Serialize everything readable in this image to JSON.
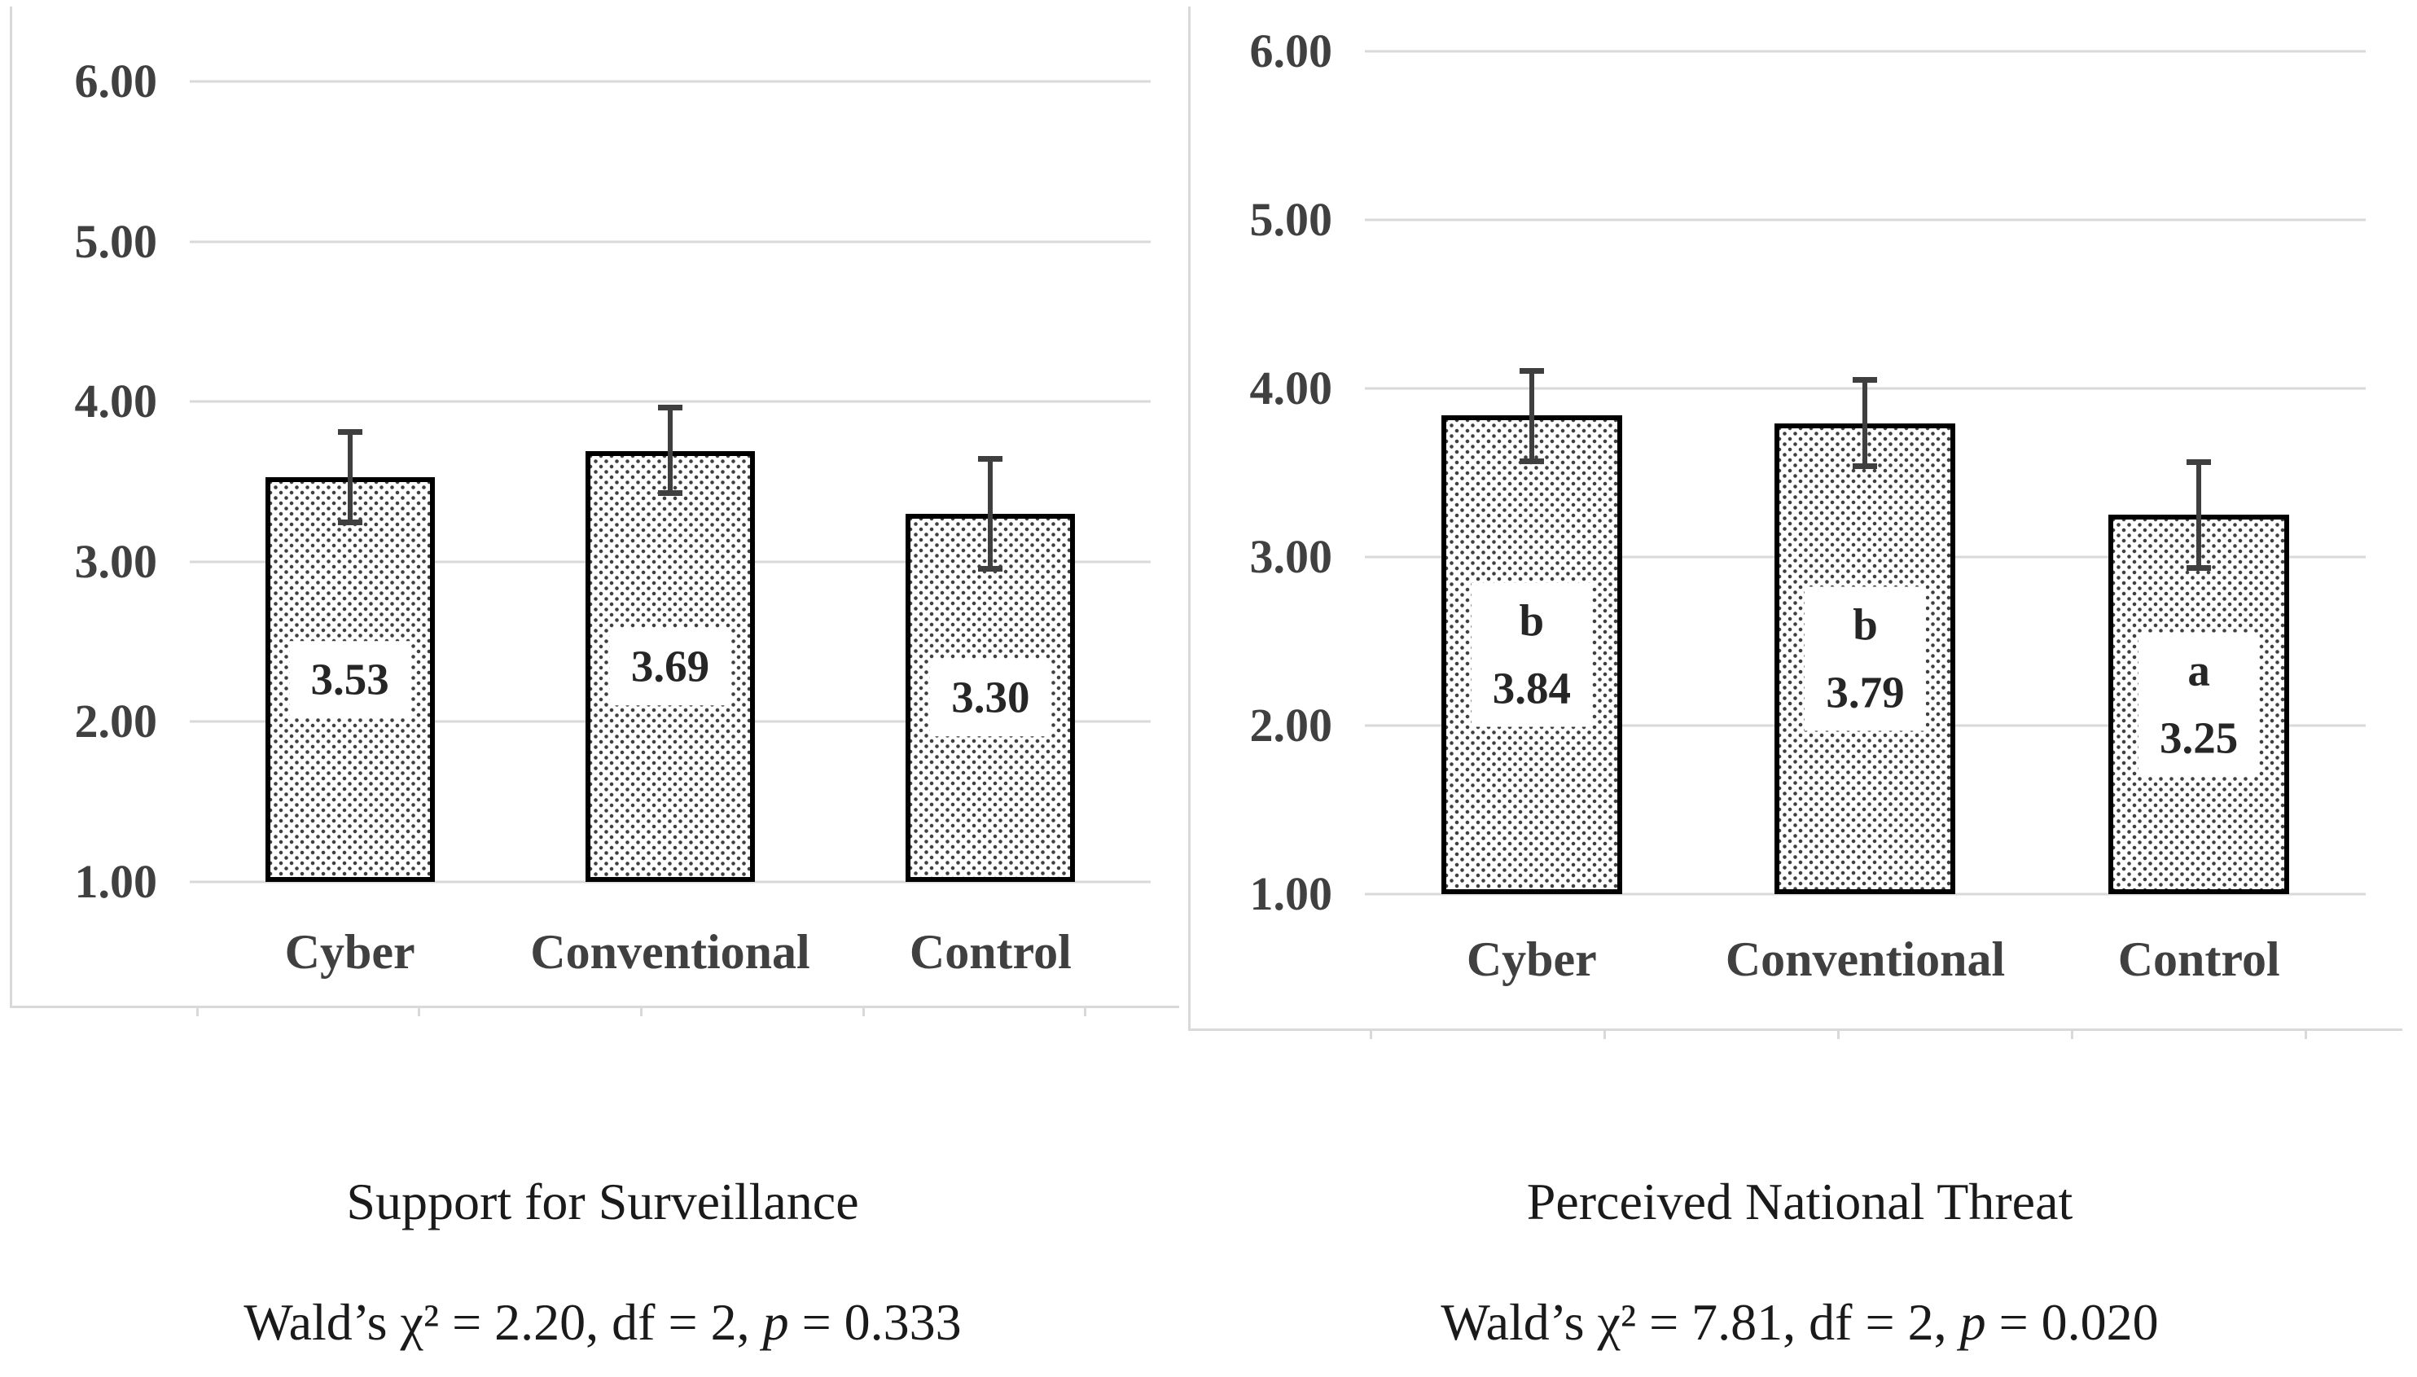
{
  "colors": {
    "background": "#ffffff",
    "gridline": "#d9d9d9",
    "panel_border": "#d9d9d9",
    "bar_fill": "#ffffff",
    "bar_dot": "#3f3f3f",
    "bar_border": "#000000",
    "error_bar": "#3f3f3f",
    "axis_text": "#404040",
    "label_text": "#262626",
    "caption_text": "#1a1a1a"
  },
  "chart_data": [
    {
      "type": "bar",
      "title": "Support for Surveillance",
      "stats_line": {
        "before_p": "Wald’s χ² = 2.20, df = 2, ",
        "p_symbol": "p",
        "after_p": " = 0.333"
      },
      "y_axis": {
        "min": 1.0,
        "max": 6.0,
        "step": 1.0,
        "gridlines": true,
        "ticks": [
          {
            "value": 6.0,
            "label": "6.00"
          },
          {
            "value": 5.0,
            "label": "5.00"
          },
          {
            "value": 4.0,
            "label": "4.00"
          },
          {
            "value": 3.0,
            "label": "3.00"
          },
          {
            "value": 2.0,
            "label": "2.00"
          },
          {
            "value": 1.0,
            "label": "1.00"
          }
        ]
      },
      "categories": [
        "Cyber",
        "Conventional",
        "Control"
      ],
      "values": [
        3.53,
        3.69,
        3.3
      ],
      "value_labels": [
        "3.53",
        "3.69",
        "3.30"
      ],
      "sig_letters": [
        "",
        "",
        ""
      ],
      "error_up": [
        0.3,
        0.29,
        0.36
      ],
      "error_down": [
        0.3,
        0.28,
        0.36
      ]
    },
    {
      "type": "bar",
      "title": "Perceived National Threat",
      "stats_line": {
        "before_p": "Wald’s χ² = 7.81, df = 2, ",
        "p_symbol": "p",
        "after_p": " = 0.020"
      },
      "y_axis": {
        "min": 1.0,
        "max": 6.0,
        "step": 1.0,
        "gridlines": true,
        "ticks": [
          {
            "value": 6.0,
            "label": "6.00"
          },
          {
            "value": 5.0,
            "label": "5.00"
          },
          {
            "value": 4.0,
            "label": "4.00"
          },
          {
            "value": 3.0,
            "label": "3.00"
          },
          {
            "value": 2.0,
            "label": "2.00"
          },
          {
            "value": 1.0,
            "label": "1.00"
          }
        ]
      },
      "categories": [
        "Cyber",
        "Conventional",
        "Control"
      ],
      "values": [
        3.84,
        3.79,
        3.25
      ],
      "value_labels": [
        "3.84",
        "3.79",
        "3.25"
      ],
      "sig_letters": [
        "b",
        "b",
        "a"
      ],
      "error_up": [
        0.28,
        0.28,
        0.33
      ],
      "error_down": [
        0.29,
        0.27,
        0.33
      ]
    }
  ]
}
